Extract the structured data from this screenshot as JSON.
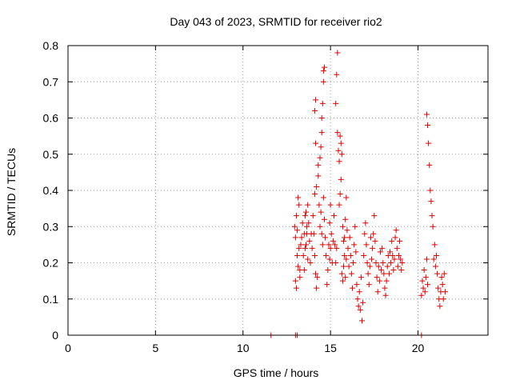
{
  "chart_data": {
    "type": "scatter",
    "title": "Day 043 of 2023, SRMTID for receiver rio2",
    "xlabel": "GPS time / hours",
    "ylabel": "SRMTID / TECUs",
    "xlim": [
      0,
      24
    ],
    "ylim": [
      0,
      0.8
    ],
    "xticks": [
      0,
      5,
      10,
      15,
      20
    ],
    "yticks": [
      0,
      0.1,
      0.2,
      0.3,
      0.4,
      0.5,
      0.6,
      0.7,
      0.8
    ],
    "grid": true,
    "marker": "+",
    "color": "#e00000",
    "series": [
      {
        "name": "rio2",
        "points": [
          [
            11.6,
            0.0
          ],
          [
            13.0,
            0.0
          ],
          [
            13.1,
            0.0
          ],
          [
            20.2,
            0.0
          ],
          [
            12.95,
            0.3
          ],
          [
            13.0,
            0.27
          ],
          [
            13.05,
            0.33
          ],
          [
            13.1,
            0.22
          ],
          [
            13.15,
            0.19
          ],
          [
            13.2,
            0.36
          ],
          [
            13.25,
            0.16
          ],
          [
            13.3,
            0.25
          ],
          [
            13.0,
            0.15
          ],
          [
            13.05,
            0.13
          ],
          [
            13.1,
            0.29
          ],
          [
            13.15,
            0.38
          ],
          [
            13.2,
            0.24
          ],
          [
            13.25,
            0.18
          ],
          [
            13.35,
            0.27
          ],
          [
            13.4,
            0.31
          ],
          [
            13.45,
            0.22
          ],
          [
            13.5,
            0.28
          ],
          [
            13.55,
            0.33
          ],
          [
            13.6,
            0.25
          ],
          [
            13.65,
            0.3
          ],
          [
            13.7,
            0.21
          ],
          [
            13.5,
            0.18
          ],
          [
            13.55,
            0.24
          ],
          [
            13.6,
            0.34
          ],
          [
            13.65,
            0.28
          ],
          [
            13.7,
            0.36
          ],
          [
            13.75,
            0.31
          ],
          [
            13.8,
            0.26
          ],
          [
            13.85,
            0.2
          ],
          [
            13.9,
            0.28
          ],
          [
            13.95,
            0.24
          ],
          [
            14.0,
            0.33
          ],
          [
            14.05,
            0.28
          ],
          [
            14.1,
            0.22
          ],
          [
            14.15,
            0.17
          ],
          [
            14.1,
            0.39
          ],
          [
            14.15,
            0.53
          ],
          [
            14.1,
            0.62
          ],
          [
            14.15,
            0.65
          ],
          [
            14.2,
            0.41
          ],
          [
            14.2,
            0.13
          ],
          [
            14.25,
            0.16
          ],
          [
            14.3,
            0.44
          ],
          [
            14.3,
            0.47
          ],
          [
            14.35,
            0.36
          ],
          [
            14.4,
            0.3
          ],
          [
            14.45,
            0.34
          ],
          [
            14.5,
            0.28
          ],
          [
            14.55,
            0.25
          ],
          [
            14.6,
            0.73
          ],
          [
            14.6,
            0.7
          ],
          [
            14.65,
            0.74
          ],
          [
            14.55,
            0.64
          ],
          [
            14.5,
            0.6
          ],
          [
            14.5,
            0.56
          ],
          [
            14.45,
            0.52
          ],
          [
            14.4,
            0.49
          ],
          [
            14.6,
            0.38
          ],
          [
            14.65,
            0.32
          ],
          [
            14.7,
            0.27
          ],
          [
            14.75,
            0.22
          ],
          [
            14.8,
            0.14
          ],
          [
            14.85,
            0.18
          ],
          [
            14.9,
            0.25
          ],
          [
            14.95,
            0.31
          ],
          [
            15.0,
            0.36
          ],
          [
            14.95,
            0.21
          ],
          [
            15.0,
            0.24
          ],
          [
            15.05,
            0.28
          ],
          [
            15.1,
            0.2
          ],
          [
            15.15,
            0.26
          ],
          [
            15.2,
            0.33
          ],
          [
            15.25,
            0.25
          ],
          [
            15.3,
            0.2
          ],
          [
            15.35,
            0.24
          ],
          [
            15.3,
            0.64
          ],
          [
            15.35,
            0.72
          ],
          [
            15.4,
            0.78
          ],
          [
            15.4,
            0.56
          ],
          [
            15.45,
            0.51
          ],
          [
            15.5,
            0.48
          ],
          [
            15.55,
            0.55
          ],
          [
            15.6,
            0.53
          ],
          [
            15.65,
            0.5
          ],
          [
            15.6,
            0.43
          ],
          [
            15.55,
            0.39
          ],
          [
            15.5,
            0.36
          ],
          [
            15.7,
            0.3
          ],
          [
            15.75,
            0.26
          ],
          [
            15.8,
            0.22
          ],
          [
            15.85,
            0.32
          ],
          [
            15.9,
            0.38
          ],
          [
            15.95,
            0.29
          ],
          [
            15.65,
            0.17
          ],
          [
            15.7,
            0.15
          ],
          [
            15.75,
            0.19
          ],
          [
            15.8,
            0.27
          ],
          [
            15.85,
            0.16
          ],
          [
            15.9,
            0.21
          ],
          [
            16.0,
            0.24
          ],
          [
            16.05,
            0.19
          ],
          [
            16.1,
            0.27
          ],
          [
            16.15,
            0.22
          ],
          [
            16.2,
            0.17
          ],
          [
            16.25,
            0.13
          ],
          [
            16.3,
            0.2
          ],
          [
            16.35,
            0.25
          ],
          [
            16.4,
            0.3
          ],
          [
            16.45,
            0.23
          ],
          [
            16.5,
            0.14
          ],
          [
            16.55,
            0.1
          ],
          [
            16.6,
            0.08
          ],
          [
            16.65,
            0.12
          ],
          [
            16.7,
            0.07
          ],
          [
            16.75,
            0.16
          ],
          [
            16.8,
            0.04
          ],
          [
            16.85,
            0.09
          ],
          [
            16.9,
            0.22
          ],
          [
            16.95,
            0.28
          ],
          [
            17.0,
            0.31
          ],
          [
            17.05,
            0.25
          ],
          [
            17.1,
            0.2
          ],
          [
            17.15,
            0.17
          ],
          [
            17.2,
            0.14
          ],
          [
            17.25,
            0.19
          ],
          [
            17.3,
            0.27
          ],
          [
            17.35,
            0.21
          ],
          [
            17.4,
            0.24
          ],
          [
            17.45,
            0.28
          ],
          [
            17.5,
            0.33
          ],
          [
            17.55,
            0.26
          ],
          [
            17.6,
            0.2
          ],
          [
            17.65,
            0.16
          ],
          [
            17.7,
            0.12
          ],
          [
            17.75,
            0.19
          ],
          [
            17.8,
            0.15
          ],
          [
            17.85,
            0.23
          ],
          [
            17.9,
            0.18
          ],
          [
            17.95,
            0.24
          ],
          [
            18.0,
            0.2
          ],
          [
            18.05,
            0.17
          ],
          [
            18.1,
            0.13
          ],
          [
            18.15,
            0.11
          ],
          [
            18.2,
            0.15
          ],
          [
            18.25,
            0.19
          ],
          [
            18.3,
            0.22
          ],
          [
            18.35,
            0.17
          ],
          [
            18.4,
            0.23
          ],
          [
            18.45,
            0.2
          ],
          [
            18.5,
            0.26
          ],
          [
            18.55,
            0.22
          ],
          [
            18.6,
            0.18
          ],
          [
            18.65,
            0.21
          ],
          [
            18.7,
            0.27
          ],
          [
            18.75,
            0.29
          ],
          [
            18.8,
            0.24
          ],
          [
            18.85,
            0.19
          ],
          [
            18.9,
            0.22
          ],
          [
            18.95,
            0.26
          ],
          [
            19.0,
            0.21
          ],
          [
            19.05,
            0.18
          ],
          [
            19.1,
            0.2
          ],
          [
            20.2,
            0.11
          ],
          [
            20.25,
            0.15
          ],
          [
            20.3,
            0.13
          ],
          [
            20.35,
            0.18
          ],
          [
            20.4,
            0.12
          ],
          [
            20.45,
            0.16
          ],
          [
            20.5,
            0.21
          ],
          [
            20.55,
            0.14
          ],
          [
            20.5,
            0.61
          ],
          [
            20.55,
            0.58
          ],
          [
            20.6,
            0.53
          ],
          [
            20.65,
            0.47
          ],
          [
            20.7,
            0.4
          ],
          [
            20.75,
            0.37
          ],
          [
            20.8,
            0.33
          ],
          [
            20.85,
            0.3
          ],
          [
            20.9,
            0.21
          ],
          [
            20.95,
            0.25
          ],
          [
            21.0,
            0.19
          ],
          [
            21.05,
            0.22
          ],
          [
            21.1,
            0.17
          ],
          [
            21.15,
            0.13
          ],
          [
            21.2,
            0.1
          ],
          [
            21.25,
            0.08
          ],
          [
            21.3,
            0.12
          ],
          [
            21.35,
            0.16
          ],
          [
            21.4,
            0.14
          ],
          [
            21.45,
            0.1
          ],
          [
            21.5,
            0.17
          ],
          [
            21.55,
            0.12
          ]
        ]
      }
    ]
  }
}
